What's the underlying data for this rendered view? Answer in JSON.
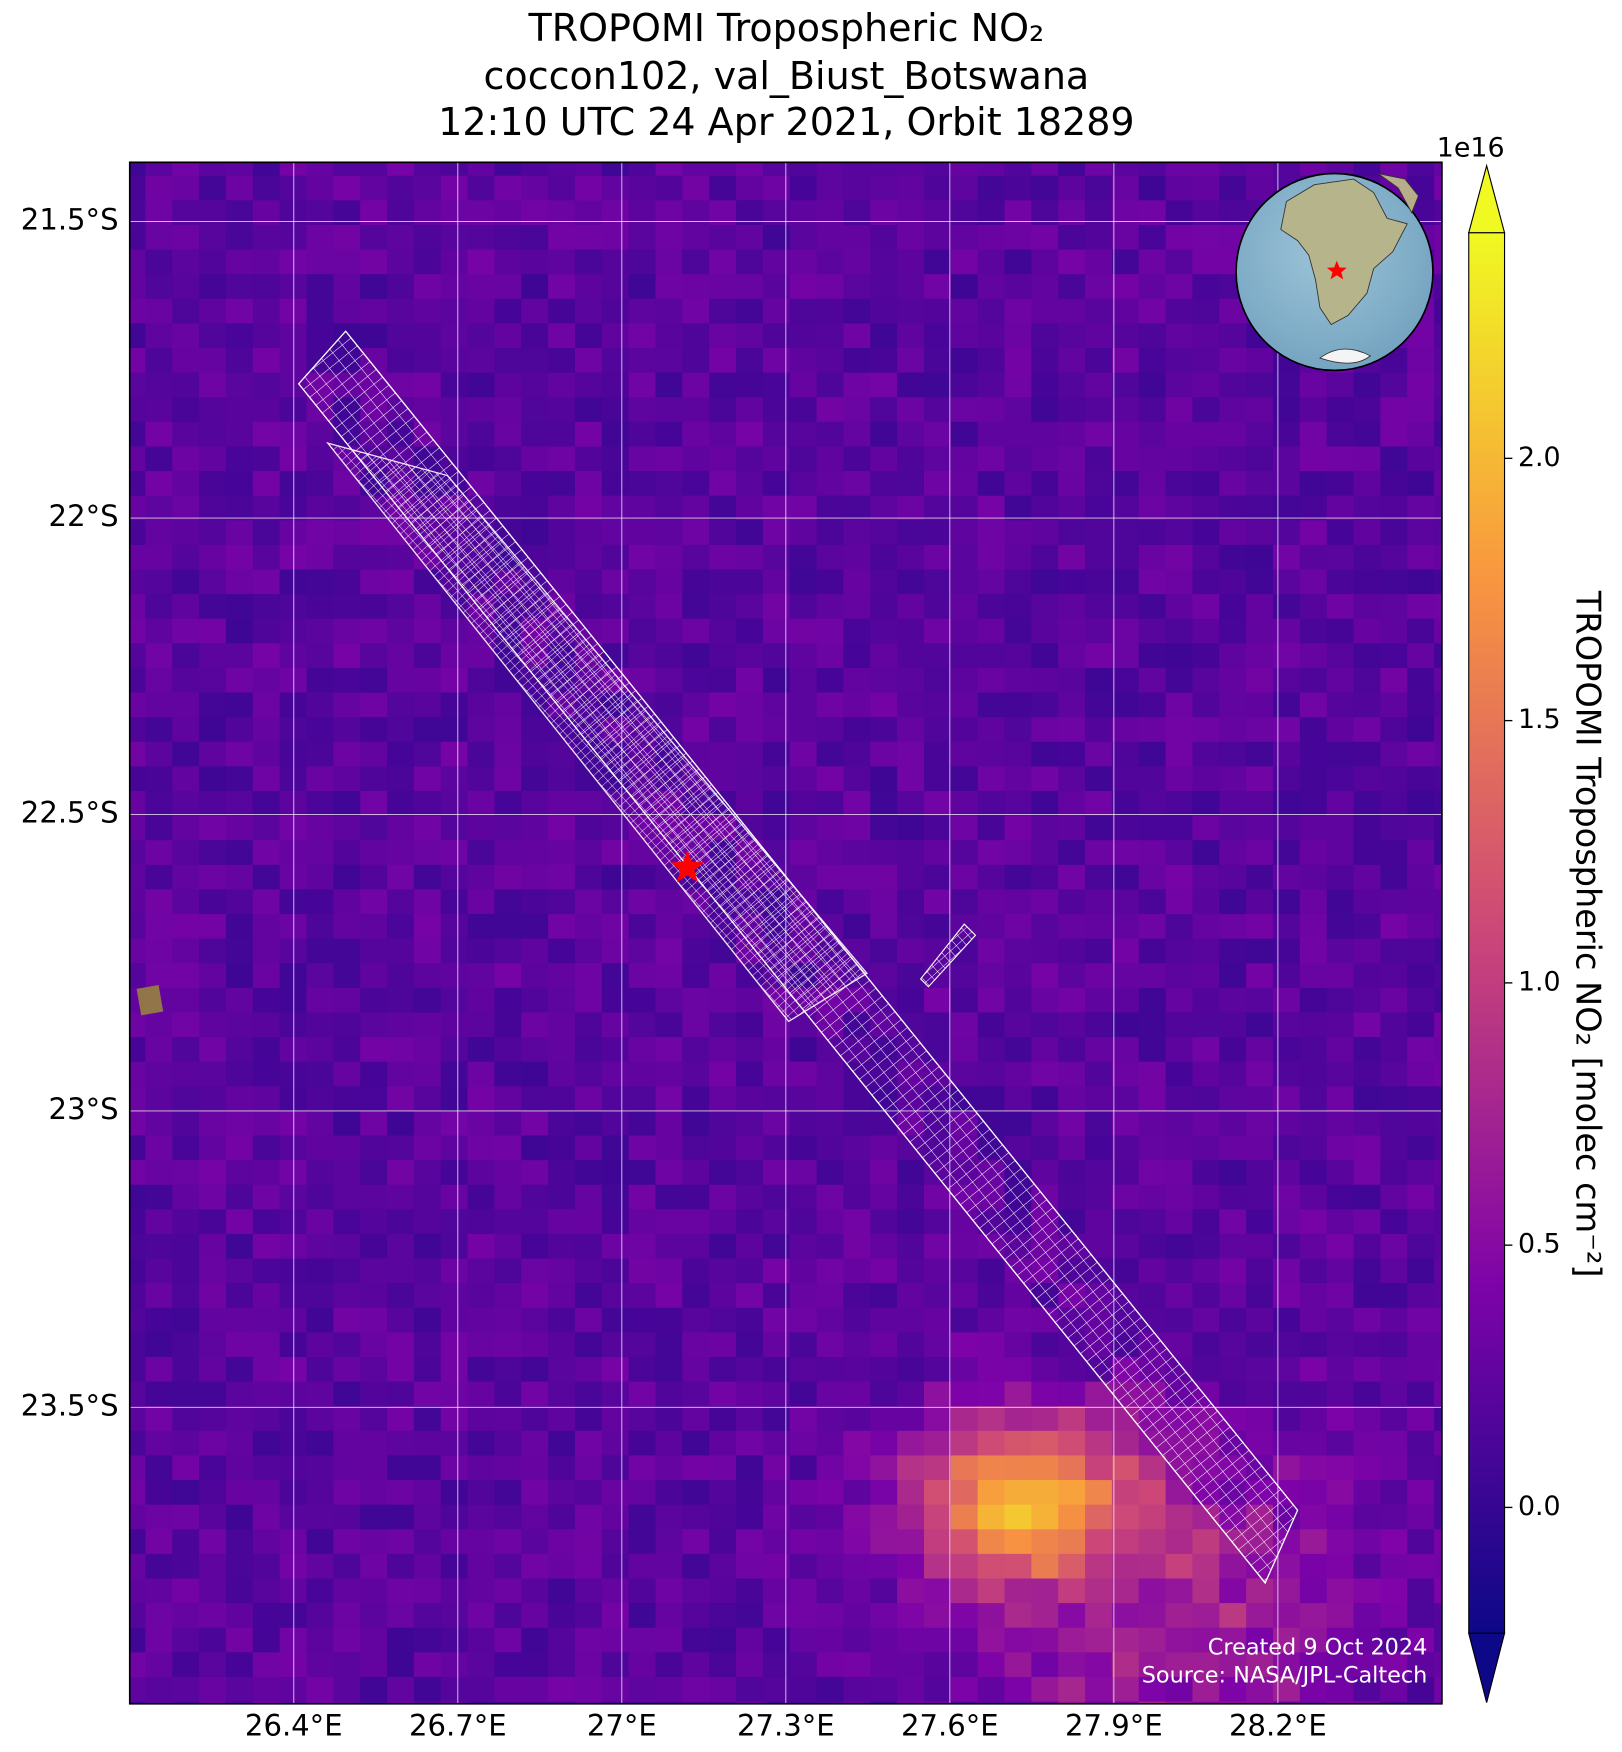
{
  "title": [
    "TROPOMI Tropospheric NO₂",
    "coccon102, val_Biust_Botswana",
    "12:10 UTC 24 Apr 2021, Orbit 18289"
  ],
  "map": {
    "xlim": [
      26.1,
      28.5
    ],
    "ylim": [
      -24.0,
      -21.4
    ],
    "grid": true,
    "xticks": [
      {
        "value": 26.4,
        "label": "26.4°E"
      },
      {
        "value": 26.7,
        "label": "26.7°E"
      },
      {
        "value": 27,
        "label": "27°E"
      },
      {
        "value": 27.3,
        "label": "27.3°E"
      },
      {
        "value": 27.6,
        "label": "27.6°E"
      },
      {
        "value": 27.9,
        "label": "27.9°E"
      },
      {
        "value": 28.2,
        "label": "28.2°E"
      }
    ],
    "yticks": [
      {
        "value": -21.5,
        "label": "21.5°S"
      },
      {
        "value": -22,
        "label": "22°S"
      },
      {
        "value": -22.5,
        "label": "22.5°S"
      },
      {
        "value": -23,
        "label": "23°S"
      },
      {
        "value": -23.5,
        "label": "23.5°S"
      }
    ],
    "site": {
      "lon": 27.12,
      "lat": -22.59,
      "color": "#ff0000"
    }
  },
  "colorbar": {
    "label": "TROPOMI Tropospheric NO₂ [molec cm⁻²]",
    "exponent": "1e16",
    "lim": [
      -0.24,
      2.43
    ],
    "ticks": [
      {
        "value": 0,
        "label": "0.0"
      },
      0.5,
      {
        "value": 1,
        "label": "1.0"
      },
      1.5,
      {
        "value": 2,
        "label": "2.0"
      }
    ]
  },
  "credits": [
    "Created 9 Oct 2024",
    "Source: NASA/JPL-Caltech"
  ]
}
